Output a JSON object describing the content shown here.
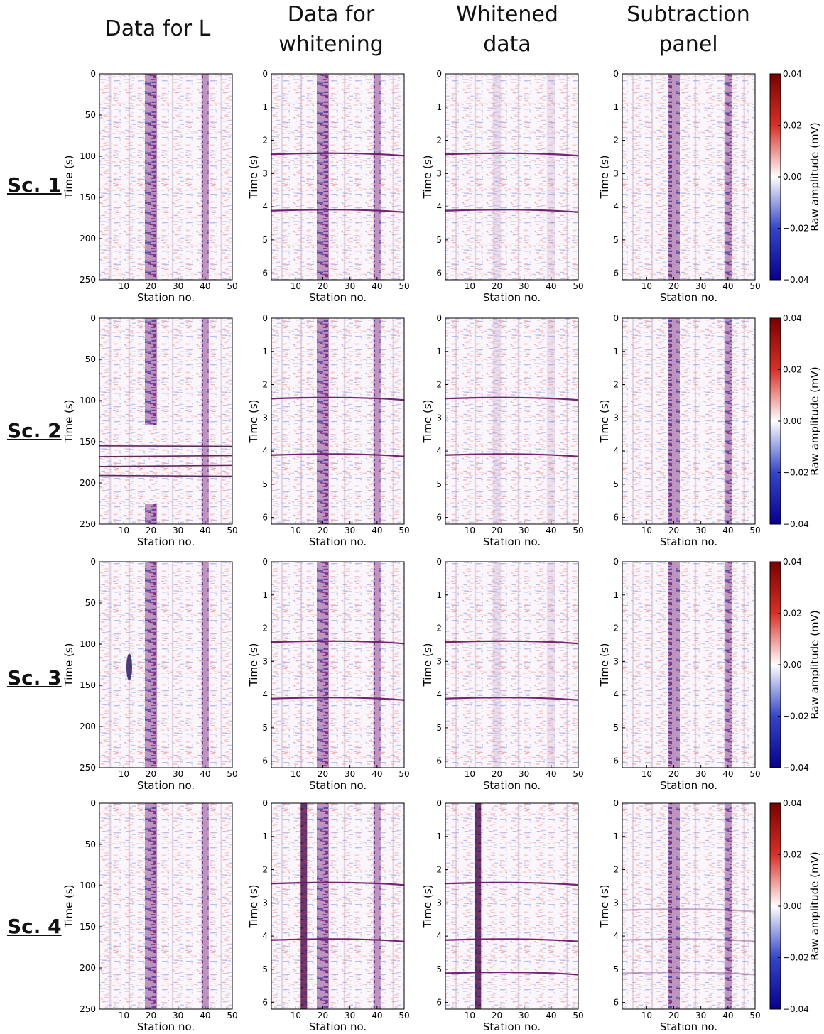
{
  "column_titles": [
    "Data for L",
    "Data for\nwhitening",
    "Whitened\ndata",
    "Subtraction\npanel"
  ],
  "row_labels": [
    "Sc. 1",
    "Sc. 2",
    "Sc. 3",
    "Sc. 4"
  ],
  "colors": {
    "colormap": [
      "#08008f",
      "#3545c8",
      "#ffffff",
      "#d73027",
      "#7a0000"
    ],
    "signal": "#7a1b7a",
    "arrival_line": "#6a1a6a"
  },
  "chart_data": {
    "type": "heatmap",
    "colormap": "seismic",
    "description_units": "Raw amplitude (mV)",
    "xlabel": "Station no.",
    "xlim": [
      1,
      50
    ],
    "xticks": [
      10,
      20,
      30,
      40,
      50
    ],
    "time_axis_samples": {
      "ylabel": "Time (s)",
      "ylim": [
        250,
        0
      ],
      "yticks": [
        0,
        50,
        100,
        150,
        200,
        250
      ]
    },
    "time_axis_seconds": {
      "ylabel": "Time (s)",
      "ylim": [
        6.2,
        0
      ],
      "yticks": [
        0,
        1,
        2,
        3,
        4,
        5,
        6
      ]
    },
    "colorbar": {
      "label": "Raw amplitude (mV)",
      "range": [
        -0.04,
        0.04
      ],
      "ticks": [
        0.04,
        0.02,
        0.0,
        -0.02,
        -0.04
      ],
      "tick_labels": [
        "0.04",
        "0.02",
        "0.00",
        "−0.02",
        "−0.04"
      ]
    },
    "panels": [
      {
        "row": 1,
        "col": 1,
        "bands": [
          20,
          40
        ],
        "events": []
      },
      {
        "row": 1,
        "col": 2,
        "bands": [
          20,
          40
        ],
        "events": [
          2.4,
          4.1
        ]
      },
      {
        "row": 1,
        "col": 3,
        "bands": [],
        "events": [
          2.4,
          4.1
        ]
      },
      {
        "row": 1,
        "col": 4,
        "bands": [
          20,
          40
        ],
        "events": []
      },
      {
        "row": 2,
        "col": 1,
        "bands": [
          20,
          40
        ],
        "gap_samples": [
          130,
          225
        ],
        "noise_lines_samples": [
          155,
          168,
          180,
          191
        ]
      },
      {
        "row": 2,
        "col": 2,
        "bands": [
          20,
          40
        ],
        "events": [
          2.4,
          4.1
        ]
      },
      {
        "row": 2,
        "col": 3,
        "bands": [],
        "events": [
          2.4,
          4.1
        ]
      },
      {
        "row": 2,
        "col": 4,
        "bands": [
          20,
          40
        ],
        "events": []
      },
      {
        "row": 3,
        "col": 1,
        "bands": [
          20,
          40
        ],
        "blob": {
          "station": 12,
          "sample": 128
        }
      },
      {
        "row": 3,
        "col": 2,
        "bands": [
          20,
          40
        ],
        "events": [
          2.4,
          4.1
        ]
      },
      {
        "row": 3,
        "col": 3,
        "bands": [],
        "events": [
          2.4,
          4.1
        ]
      },
      {
        "row": 3,
        "col": 4,
        "bands": [
          20,
          40
        ],
        "events": []
      },
      {
        "row": 4,
        "col": 1,
        "bands": [
          20,
          40
        ],
        "events": []
      },
      {
        "row": 4,
        "col": 2,
        "bands": [
          13,
          20,
          40
        ],
        "events": [
          2.4,
          4.1
        ]
      },
      {
        "row": 4,
        "col": 3,
        "bands": [
          13
        ],
        "events": [
          2.4,
          4.1,
          5.1
        ]
      },
      {
        "row": 4,
        "col": 4,
        "bands": [
          20,
          40
        ],
        "events": [
          3.2,
          4.1,
          5.1
        ]
      }
    ]
  }
}
